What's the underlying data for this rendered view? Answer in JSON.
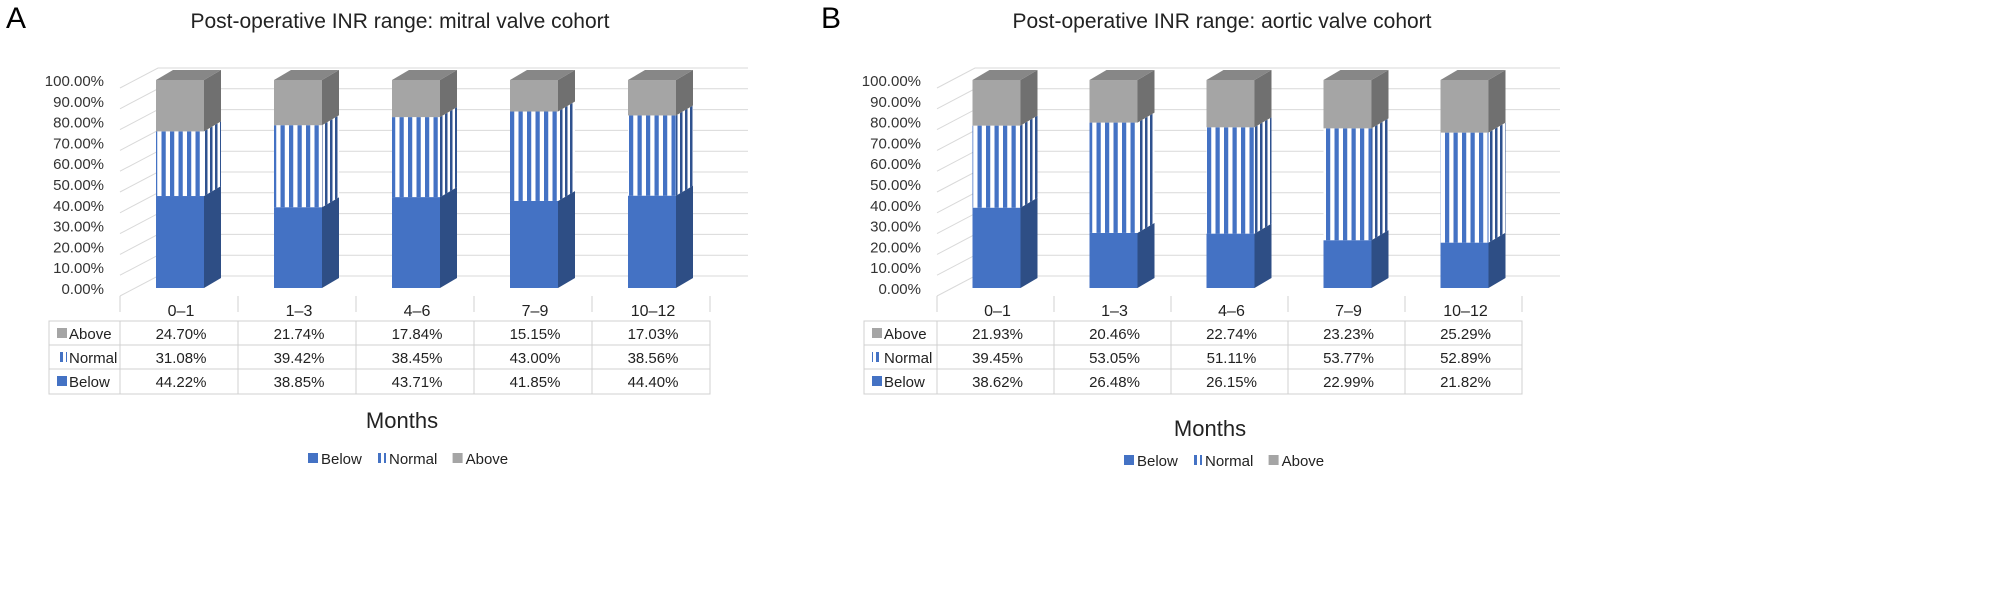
{
  "chart_data": [
    {
      "type": "bar",
      "stacked": true,
      "style": "3d",
      "panel_letter": "A",
      "title": "Post-operative INR range: mitral valve cohort",
      "xlabel": "Months",
      "ylabel": "",
      "ylim": [
        0,
        100
      ],
      "y_ticks": [
        "0.00%",
        "10.00%",
        "20.00%",
        "30.00%",
        "40.00%",
        "50.00%",
        "60.00%",
        "70.00%",
        "80.00%",
        "90.00%",
        "100.00%"
      ],
      "categories": [
        "0–1",
        "1–3",
        "4–6",
        "7–9",
        "10–12"
      ],
      "series": [
        {
          "name": "Below",
          "values": [
            44.22,
            38.85,
            43.71,
            41.85,
            44.4
          ],
          "labels": [
            "44.22%",
            "38.85%",
            "43.71%",
            "41.85%",
            "44.40%"
          ],
          "color": "#4472c4"
        },
        {
          "name": "Normal",
          "values": [
            31.08,
            39.42,
            38.45,
            43.0,
            38.56
          ],
          "labels": [
            "31.08%",
            "39.42%",
            "38.45%",
            "43.00%",
            "38.56%"
          ],
          "color": "#4472c4",
          "pattern": "vertical-stripes"
        },
        {
          "name": "Above",
          "values": [
            24.7,
            21.74,
            17.84,
            15.15,
            17.03
          ],
          "labels": [
            "24.70%",
            "21.74%",
            "17.84%",
            "15.15%",
            "17.03%"
          ],
          "color": "#a5a5a5"
        }
      ],
      "data_table": true,
      "legend_position": "bottom",
      "grid": true
    },
    {
      "type": "bar",
      "stacked": true,
      "style": "3d",
      "panel_letter": "B",
      "title": "Post-operative INR range: aortic valve cohort",
      "xlabel": "Months",
      "ylabel": "",
      "ylim": [
        0,
        100
      ],
      "y_ticks": [
        "0.00%",
        "10.00%",
        "20.00%",
        "30.00%",
        "40.00%",
        "50.00%",
        "60.00%",
        "70.00%",
        "80.00%",
        "90.00%",
        "100.00%"
      ],
      "categories": [
        "0–1",
        "1–3",
        "4–6",
        "7–9",
        "10–12"
      ],
      "series": [
        {
          "name": "Below",
          "values": [
            38.62,
            26.48,
            26.15,
            22.99,
            21.82
          ],
          "labels": [
            "38.62%",
            "26.48%",
            "26.15%",
            "22.99%",
            "21.82%"
          ],
          "color": "#4472c4"
        },
        {
          "name": "Normal",
          "values": [
            39.45,
            53.05,
            51.11,
            53.77,
            52.89
          ],
          "labels": [
            "39.45%",
            "53.05%",
            "51.11%",
            "53.77%",
            "52.89%"
          ],
          "color": "#4472c4",
          "pattern": "vertical-stripes"
        },
        {
          "name": "Above",
          "values": [
            21.93,
            20.46,
            22.74,
            23.23,
            25.29
          ],
          "labels": [
            "21.93%",
            "20.46%",
            "22.74%",
            "23.23%",
            "25.29%"
          ],
          "color": "#a5a5a5"
        }
      ],
      "data_table": true,
      "legend_position": "bottom",
      "grid": true
    }
  ]
}
